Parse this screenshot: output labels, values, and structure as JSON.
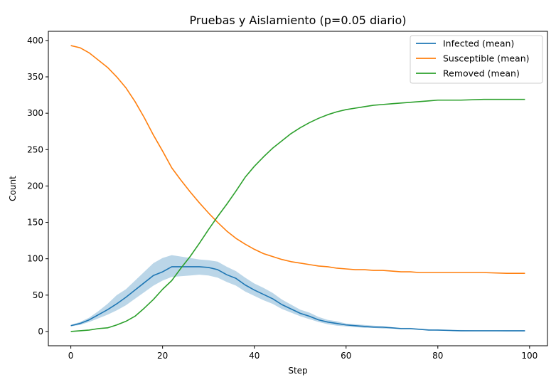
{
  "chart_data": {
    "type": "line",
    "title": "Pruebas y Aislamiento (p=0.05 diario)",
    "xlabel": "Step",
    "ylabel": "Count",
    "xlim": [
      -4.9,
      103.9
    ],
    "ylim": [
      -19.6,
      412.6
    ],
    "xticks": [
      0,
      20,
      40,
      60,
      80,
      100
    ],
    "yticks": [
      0,
      50,
      100,
      150,
      200,
      250,
      300,
      350,
      400
    ],
    "legend_position": "upper-right",
    "grid": false,
    "x": [
      0,
      2,
      4,
      6,
      8,
      10,
      12,
      14,
      16,
      18,
      20,
      22,
      24,
      26,
      28,
      30,
      32,
      34,
      36,
      38,
      40,
      42,
      44,
      46,
      48,
      50,
      52,
      54,
      56,
      58,
      60,
      62,
      64,
      66,
      68,
      70,
      72,
      74,
      76,
      78,
      80,
      85,
      90,
      95,
      99
    ],
    "series": [
      {
        "name": "Infected (mean)",
        "color": "#1f77b4",
        "values": [
          8,
          11,
          16,
          23,
          30,
          38,
          47,
          57,
          67,
          77,
          82,
          89,
          89,
          89,
          89,
          88,
          85,
          78,
          73,
          64,
          57,
          51,
          45,
          37,
          31,
          25,
          21,
          16,
          13,
          11,
          9,
          8,
          7,
          6,
          6,
          5,
          4,
          4,
          3,
          2,
          2,
          1,
          1,
          1,
          1
        ],
        "band_low": [
          7,
          9,
          13,
          18,
          23,
          29,
          36,
          45,
          54,
          63,
          70,
          75,
          76,
          77,
          78,
          77,
          74,
          68,
          63,
          55,
          49,
          43,
          38,
          31,
          26,
          21,
          17,
          13,
          10,
          8,
          7,
          6,
          5,
          5,
          4,
          4,
          3,
          3,
          2,
          2,
          1,
          1,
          1,
          0,
          0
        ],
        "band_high": [
          9,
          13,
          19,
          28,
          38,
          50,
          58,
          70,
          82,
          94,
          101,
          105,
          103,
          101,
          99,
          98,
          96,
          89,
          83,
          74,
          66,
          60,
          53,
          44,
          37,
          30,
          26,
          20,
          16,
          14,
          11,
          10,
          9,
          8,
          7,
          6,
          5,
          5,
          4,
          3,
          2,
          2,
          1,
          1,
          1
        ]
      },
      {
        "name": "Susceptible (mean)",
        "color": "#ff7f0e",
        "values": [
          393,
          390,
          383,
          373,
          363,
          350,
          335,
          316,
          294,
          270,
          248,
          225,
          208,
          192,
          177,
          163,
          150,
          138,
          128,
          120,
          113,
          107,
          103,
          99,
          96,
          94,
          92,
          90,
          89,
          87,
          86,
          85,
          85,
          84,
          84,
          83,
          82,
          82,
          81,
          81,
          81,
          81,
          81,
          80,
          80
        ]
      },
      {
        "name": "Removed (mean)",
        "color": "#2ca02c",
        "values": [
          0,
          1,
          2,
          4,
          5,
          9,
          14,
          21,
          32,
          44,
          58,
          70,
          87,
          103,
          121,
          140,
          158,
          175,
          193,
          212,
          227,
          240,
          252,
          262,
          272,
          280,
          287,
          293,
          298,
          302,
          305,
          307,
          309,
          311,
          312,
          313,
          314,
          315,
          316,
          317,
          318,
          318,
          319,
          319,
          319
        ]
      }
    ]
  }
}
